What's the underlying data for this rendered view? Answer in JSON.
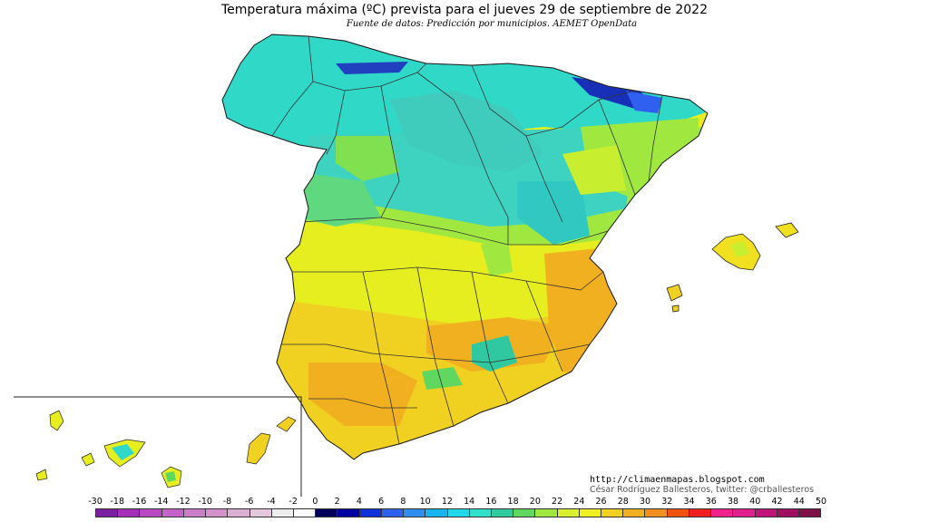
{
  "header": {
    "title": "Temperatura máxima (ºC) prevista para el jueves 29 de septiembre de 2022",
    "subtitle": "Fuente de datos: Predicción por municipios. AEMET OpenData"
  },
  "credits": {
    "blog": "http://climaenmapas.blogspot.com",
    "author": "César Rodríguez Ballesteros, twitter: @crballesteros"
  },
  "legend": {
    "labels": [
      "-30",
      "-18",
      "-16",
      "-14",
      "-12",
      "-10",
      "-8",
      "-6",
      "-4",
      "-2",
      "0",
      "2",
      "4",
      "6",
      "8",
      "10",
      "12",
      "14",
      "16",
      "18",
      "20",
      "22",
      "24",
      "26",
      "28",
      "30",
      "32",
      "34",
      "36",
      "38",
      "40",
      "42",
      "44",
      "50"
    ],
    "colors": [
      "#7a1fa0",
      "#a52fb8",
      "#b84bc4",
      "#c564c8",
      "#cc7dc7",
      "#d392c9",
      "#dbaed3",
      "#e4c8de",
      "#eeeeee",
      "#fafafa",
      "#00005a",
      "#0000a0",
      "#1030d8",
      "#3060f0",
      "#2e8ef0",
      "#18b4f0",
      "#20d8e8",
      "#30e0c8",
      "#30cca0",
      "#60d860",
      "#a0e840",
      "#d8f030",
      "#f0f020",
      "#f0d020",
      "#f0b020",
      "#f09020",
      "#f05010",
      "#f02020",
      "#f0208c",
      "#e0208c",
      "#c01478",
      "#a01060",
      "#801048"
    ]
  }
}
